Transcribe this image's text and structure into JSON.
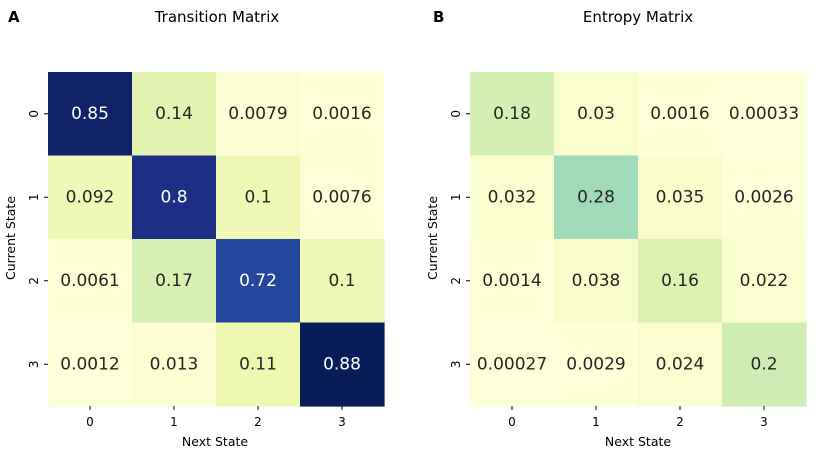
{
  "chart_data": [
    {
      "type": "heatmap",
      "panel": "A",
      "title": "Transition Matrix",
      "xlabel": "Next State",
      "ylabel": "Current State",
      "x_categories": [
        "0",
        "1",
        "2",
        "3"
      ],
      "y_categories": [
        "0",
        "1",
        "2",
        "3"
      ],
      "colormap": "YlGnBu",
      "colorbar": false,
      "value_range": [
        0,
        0.88
      ],
      "values": [
        [
          0.85,
          0.14,
          0.0079,
          0.0016
        ],
        [
          0.092,
          0.8,
          0.1,
          0.0076
        ],
        [
          0.0061,
          0.17,
          0.72,
          0.1
        ],
        [
          0.0012,
          0.013,
          0.11,
          0.88
        ]
      ],
      "labels": [
        [
          "0.85",
          "0.14",
          "0.0079",
          "0.0016"
        ],
        [
          "0.092",
          "0.8",
          "0.1",
          "0.0076"
        ],
        [
          "0.0061",
          "0.17",
          "0.72",
          "0.1"
        ],
        [
          "0.0012",
          "0.013",
          "0.11",
          "0.88"
        ]
      ]
    },
    {
      "type": "heatmap",
      "panel": "B",
      "title": "Entropy Matrix",
      "xlabel": "Next State",
      "ylabel": "Current State",
      "x_categories": [
        "0",
        "1",
        "2",
        "3"
      ],
      "y_categories": [
        "0",
        "1",
        "2",
        "3"
      ],
      "colormap": "YlGnBu",
      "colorbar": false,
      "value_range": [
        0,
        0.88
      ],
      "values": [
        [
          0.18,
          0.03,
          0.0016,
          0.00033
        ],
        [
          0.032,
          0.28,
          0.035,
          0.0026
        ],
        [
          0.0014,
          0.038,
          0.16,
          0.022
        ],
        [
          0.00027,
          0.0029,
          0.024,
          0.2
        ]
      ],
      "labels": [
        [
          "0.18",
          "0.03",
          "0.0016",
          "0.00033"
        ],
        [
          "0.032",
          "0.28",
          "0.035",
          "0.0026"
        ],
        [
          "0.0014",
          "0.038",
          "0.16",
          "0.022"
        ],
        [
          "0.00027",
          "0.0029",
          "0.024",
          "0.2"
        ]
      ]
    }
  ]
}
